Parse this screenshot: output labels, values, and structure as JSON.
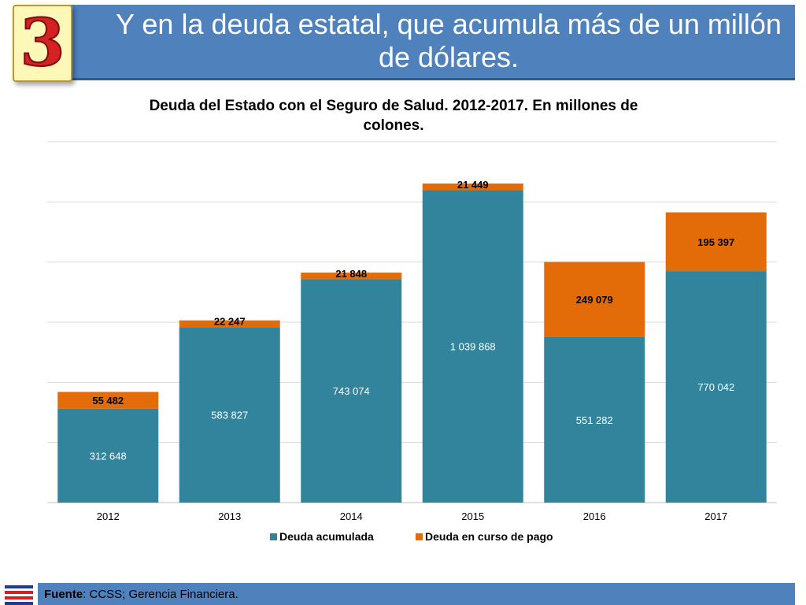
{
  "header": {
    "badge_number": "3",
    "title": "Y en la deuda estatal, que acumula más de un millón de dólares."
  },
  "footer": {
    "source_label": "Fuente",
    "source_text": ": CCSS; Gerencia Financiera."
  },
  "colors": {
    "header_bg": "#4f81bd",
    "series_acumulada": "#31849b",
    "series_curso": "#e36c09"
  },
  "chart_data": {
    "type": "bar",
    "stacked": true,
    "title": "Deuda del Estado con el Seguro de Salud.  2012-2017.  En millones de colones.",
    "categories": [
      "2012",
      "2013",
      "2014",
      "2015",
      "2016",
      "2017"
    ],
    "series": [
      {
        "name": "Deuda acumulada",
        "values": [
          312648,
          583827,
          743074,
          1039868,
          551282,
          770042
        ],
        "labels": [
          "312 648",
          "583 827",
          "743 074",
          "1 039 868",
          "551 282",
          "770 042"
        ],
        "color": "#31849b"
      },
      {
        "name": "Deuda en curso de pago",
        "values": [
          55482,
          22247,
          21848,
          21449,
          249079,
          195397
        ],
        "labels": [
          "55 482",
          "22 247",
          "21 848",
          "21 449",
          "249 079",
          "195 397"
        ],
        "color": "#e36c09"
      }
    ],
    "ylim": [
      0,
      1200000
    ],
    "grid": true,
    "legend": "bottom"
  }
}
